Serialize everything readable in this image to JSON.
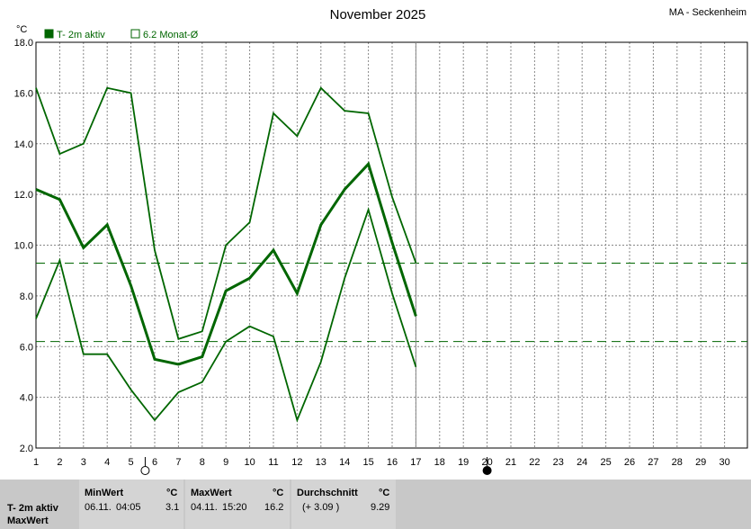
{
  "header": {
    "title": "November 2025",
    "station": "MA - Seckenheim",
    "unit": "°C"
  },
  "legend": {
    "active_label": "T- 2m aktiv",
    "mean_label": "6.2 Monat-Ø",
    "color": "#006600"
  },
  "chart_data": {
    "type": "line",
    "title": "November 2025",
    "ylabel": "°C",
    "xlim": [
      1,
      30
    ],
    "ylim": [
      2.0,
      18.0
    ],
    "x_ticks": [
      1,
      2,
      3,
      4,
      5,
      6,
      7,
      8,
      9,
      10,
      11,
      12,
      13,
      14,
      15,
      16,
      17,
      18,
      19,
      20,
      21,
      22,
      23,
      24,
      25,
      26,
      27,
      28,
      29,
      30
    ],
    "y_ticks": [
      "2.0",
      "4.0",
      "6.0",
      "8.0",
      "10.0",
      "12.0",
      "14.0",
      "16.0",
      "18.0"
    ],
    "grid": true,
    "series": [
      {
        "values_x": [
          1,
          2,
          3,
          4,
          5,
          6,
          7,
          8,
          9,
          10,
          11,
          12,
          13,
          14,
          15,
          16,
          17
        ],
        "values": [
          16.2,
          13.6,
          14.0,
          16.2,
          16.0,
          9.8,
          6.3,
          6.6,
          10.0,
          10.9,
          15.2,
          14.3,
          16.2,
          15.3,
          15.2,
          11.9,
          9.3
        ]
      },
      {
        "values_x": [
          1,
          2,
          3,
          4,
          5,
          6,
          7,
          8,
          9,
          10,
          11,
          12,
          13,
          14,
          15,
          16,
          17
        ],
        "values": [
          12.2,
          11.8,
          9.9,
          10.8,
          8.4,
          5.5,
          5.3,
          5.6,
          8.2,
          8.7,
          9.8,
          8.1,
          10.8,
          12.2,
          13.2,
          10.1,
          7.2
        ],
        "bold": true
      },
      {
        "values_x": [
          1,
          2,
          3,
          4,
          5,
          6,
          7,
          8,
          9,
          10,
          11,
          12,
          13,
          14,
          15,
          16,
          17
        ],
        "values": [
          7.1,
          9.4,
          5.7,
          5.7,
          4.3,
          3.1,
          4.2,
          4.6,
          6.2,
          6.8,
          6.4,
          3.1,
          5.4,
          8.7,
          11.4,
          8.1,
          5.2
        ]
      }
    ],
    "reference_lines": [
      9.29,
      6.2
    ],
    "current_day": 17,
    "moon_phases": [
      {
        "day": 5.6,
        "phase": "full-moon"
      },
      {
        "day": 20.0,
        "phase": "new-moon"
      }
    ]
  },
  "stats_panel": {
    "row_label": "T- 2m aktiv",
    "row_label2": "MaxWert",
    "min": {
      "header": "MinWert",
      "unit": "°C",
      "date": "06.11.",
      "time": "04:05",
      "value": "3.1"
    },
    "max": {
      "header": "MaxWert",
      "unit": "°C",
      "date": "04.11.",
      "time": "15:20",
      "value": "16.2"
    },
    "avg": {
      "header": "Durchschnitt",
      "unit": "°C",
      "diff": "(+ 3.09 )",
      "value": "9.29"
    }
  }
}
